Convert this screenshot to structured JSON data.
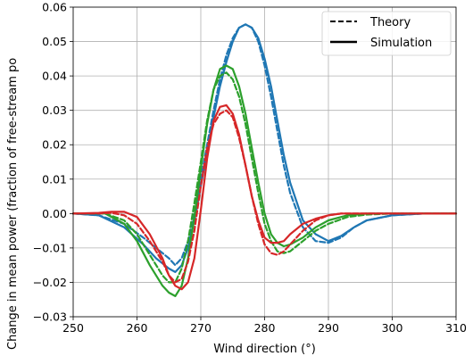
{
  "chart_data": {
    "type": "line",
    "title": "",
    "xlabel": "Wind direction ($^\\circ$)",
    "xlabel_display": "Wind direction (°)",
    "ylabel": "Change in mean power (fraction of free-stream po",
    "xlim": [
      250,
      310
    ],
    "ylim": [
      -0.03,
      0.06
    ],
    "x_ticks": [
      250,
      260,
      270,
      280,
      290,
      300,
      310
    ],
    "x_tick_labels": [
      "250",
      "260",
      "270",
      "280",
      "290",
      "300",
      "310"
    ],
    "y_ticks": [
      -0.03,
      -0.02,
      -0.01,
      0.0,
      0.01,
      0.02,
      0.03,
      0.04,
      0.05,
      0.06
    ],
    "y_tick_labels": [
      "−0.03",
      "−0.02",
      "−0.01",
      "0.00",
      "0.01",
      "0.02",
      "0.03",
      "0.04",
      "0.05",
      "0.06"
    ],
    "grid": true,
    "legend": {
      "placement": "top-right",
      "entries": [
        {
          "label": "Theory",
          "style": "dashed"
        },
        {
          "label": "Simulation",
          "style": "solid"
        }
      ]
    },
    "colors": {
      "blue": "#1f77b4",
      "green": "#2ca02c",
      "red": "#d62728"
    },
    "series": [
      {
        "color": "#1f77b4",
        "style": "dashed",
        "x": [
          250,
          254,
          258,
          261,
          263,
          265,
          266,
          267,
          268,
          269,
          270,
          271,
          272,
          273,
          274,
          275,
          276,
          277,
          278,
          279,
          280,
          281,
          282,
          283,
          284,
          286,
          288,
          290,
          292,
          294,
          296,
          300,
          305,
          310
        ],
        "y": [
          0,
          -0.0005,
          -0.003,
          -0.007,
          -0.01,
          -0.013,
          -0.015,
          -0.013,
          -0.008,
          0.0,
          0.01,
          0.02,
          0.03,
          0.039,
          0.046,
          0.051,
          0.054,
          0.055,
          0.054,
          0.05,
          0.043,
          0.034,
          0.024,
          0.014,
          0.006,
          -0.004,
          -0.008,
          -0.0085,
          -0.007,
          -0.004,
          -0.002,
          -0.0005,
          0,
          0
        ]
      },
      {
        "color": "#1f77b4",
        "style": "solid",
        "x": [
          250,
          254,
          258,
          261,
          263,
          265,
          266,
          267,
          268,
          269,
          270,
          271,
          272,
          273,
          274,
          275,
          276,
          277,
          278,
          279,
          280,
          281,
          282,
          283,
          284,
          286,
          288,
          290,
          292,
          294,
          296,
          300,
          305,
          310
        ],
        "y": [
          0,
          -0.0005,
          -0.004,
          -0.009,
          -0.013,
          -0.016,
          -0.017,
          -0.015,
          -0.01,
          -0.002,
          0.008,
          0.018,
          0.028,
          0.037,
          0.044,
          0.05,
          0.054,
          0.055,
          0.054,
          0.051,
          0.045,
          0.037,
          0.027,
          0.017,
          0.009,
          -0.002,
          -0.006,
          -0.008,
          -0.0065,
          -0.004,
          -0.002,
          -0.0005,
          0,
          0
        ]
      },
      {
        "color": "#2ca02c",
        "style": "dashed",
        "x": [
          250,
          255,
          258,
          260,
          262,
          264,
          265,
          266,
          267,
          268,
          269,
          270,
          271,
          272,
          273,
          274,
          275,
          276,
          277,
          278,
          279,
          280,
          281,
          282,
          283,
          284,
          286,
          288,
          290,
          293,
          296,
          300,
          310
        ],
        "y": [
          0,
          0,
          -0.002,
          -0.006,
          -0.012,
          -0.018,
          -0.02,
          -0.02,
          -0.016,
          -0.008,
          0.003,
          0.015,
          0.027,
          0.036,
          0.04,
          0.041,
          0.039,
          0.034,
          0.026,
          0.016,
          0.006,
          -0.003,
          -0.008,
          -0.011,
          -0.0115,
          -0.011,
          -0.008,
          -0.005,
          -0.003,
          -0.001,
          -0.0003,
          0,
          0
        ]
      },
      {
        "color": "#2ca02c",
        "style": "solid",
        "x": [
          250,
          255,
          258,
          260,
          262,
          264,
          265,
          266,
          267,
          268,
          269,
          270,
          271,
          272,
          273,
          274,
          275,
          276,
          277,
          278,
          279,
          280,
          281,
          282,
          283,
          284,
          286,
          288,
          290,
          293,
          296,
          300,
          310
        ],
        "y": [
          0,
          0,
          -0.003,
          -0.008,
          -0.015,
          -0.021,
          -0.023,
          -0.024,
          -0.021,
          -0.013,
          -0.001,
          0.013,
          0.026,
          0.036,
          0.042,
          0.043,
          0.042,
          0.037,
          0.029,
          0.019,
          0.009,
          0.0,
          -0.006,
          -0.0085,
          -0.0095,
          -0.009,
          -0.007,
          -0.004,
          -0.002,
          -0.0005,
          0,
          0,
          0
        ]
      },
      {
        "color": "#d62728",
        "style": "dashed",
        "x": [
          250,
          254,
          256,
          258,
          260,
          262,
          264,
          265,
          266,
          267,
          268,
          269,
          270,
          271,
          272,
          273,
          274,
          275,
          276,
          277,
          278,
          279,
          280,
          281,
          282,
          283,
          284,
          286,
          288,
          290,
          292,
          295,
          300,
          310
        ],
        "y": [
          0,
          0,
          0.0002,
          -0.0005,
          -0.003,
          -0.008,
          -0.014,
          -0.018,
          -0.02,
          -0.019,
          -0.014,
          -0.005,
          0.008,
          0.019,
          0.026,
          0.029,
          0.03,
          0.028,
          0.022,
          0.014,
          0.005,
          -0.003,
          -0.009,
          -0.0115,
          -0.012,
          -0.011,
          -0.009,
          -0.005,
          -0.002,
          -0.0005,
          0,
          0,
          0,
          0
        ]
      },
      {
        "color": "#d62728",
        "style": "solid",
        "x": [
          250,
          254,
          256,
          258,
          260,
          262,
          264,
          265,
          266,
          267,
          268,
          269,
          270,
          271,
          272,
          273,
          274,
          275,
          276,
          277,
          278,
          279,
          280,
          281,
          282,
          283,
          284,
          286,
          288,
          290,
          292,
          295,
          300,
          310
        ],
        "y": [
          0,
          0.0002,
          0.0005,
          0.0005,
          -0.001,
          -0.006,
          -0.013,
          -0.018,
          -0.021,
          -0.022,
          -0.02,
          -0.013,
          0.001,
          0.016,
          0.027,
          0.031,
          0.0315,
          0.029,
          0.023,
          0.014,
          0.005,
          -0.002,
          -0.007,
          -0.0085,
          -0.0085,
          -0.008,
          -0.006,
          -0.003,
          -0.0015,
          -0.0005,
          0,
          0,
          0,
          0
        ]
      }
    ]
  }
}
